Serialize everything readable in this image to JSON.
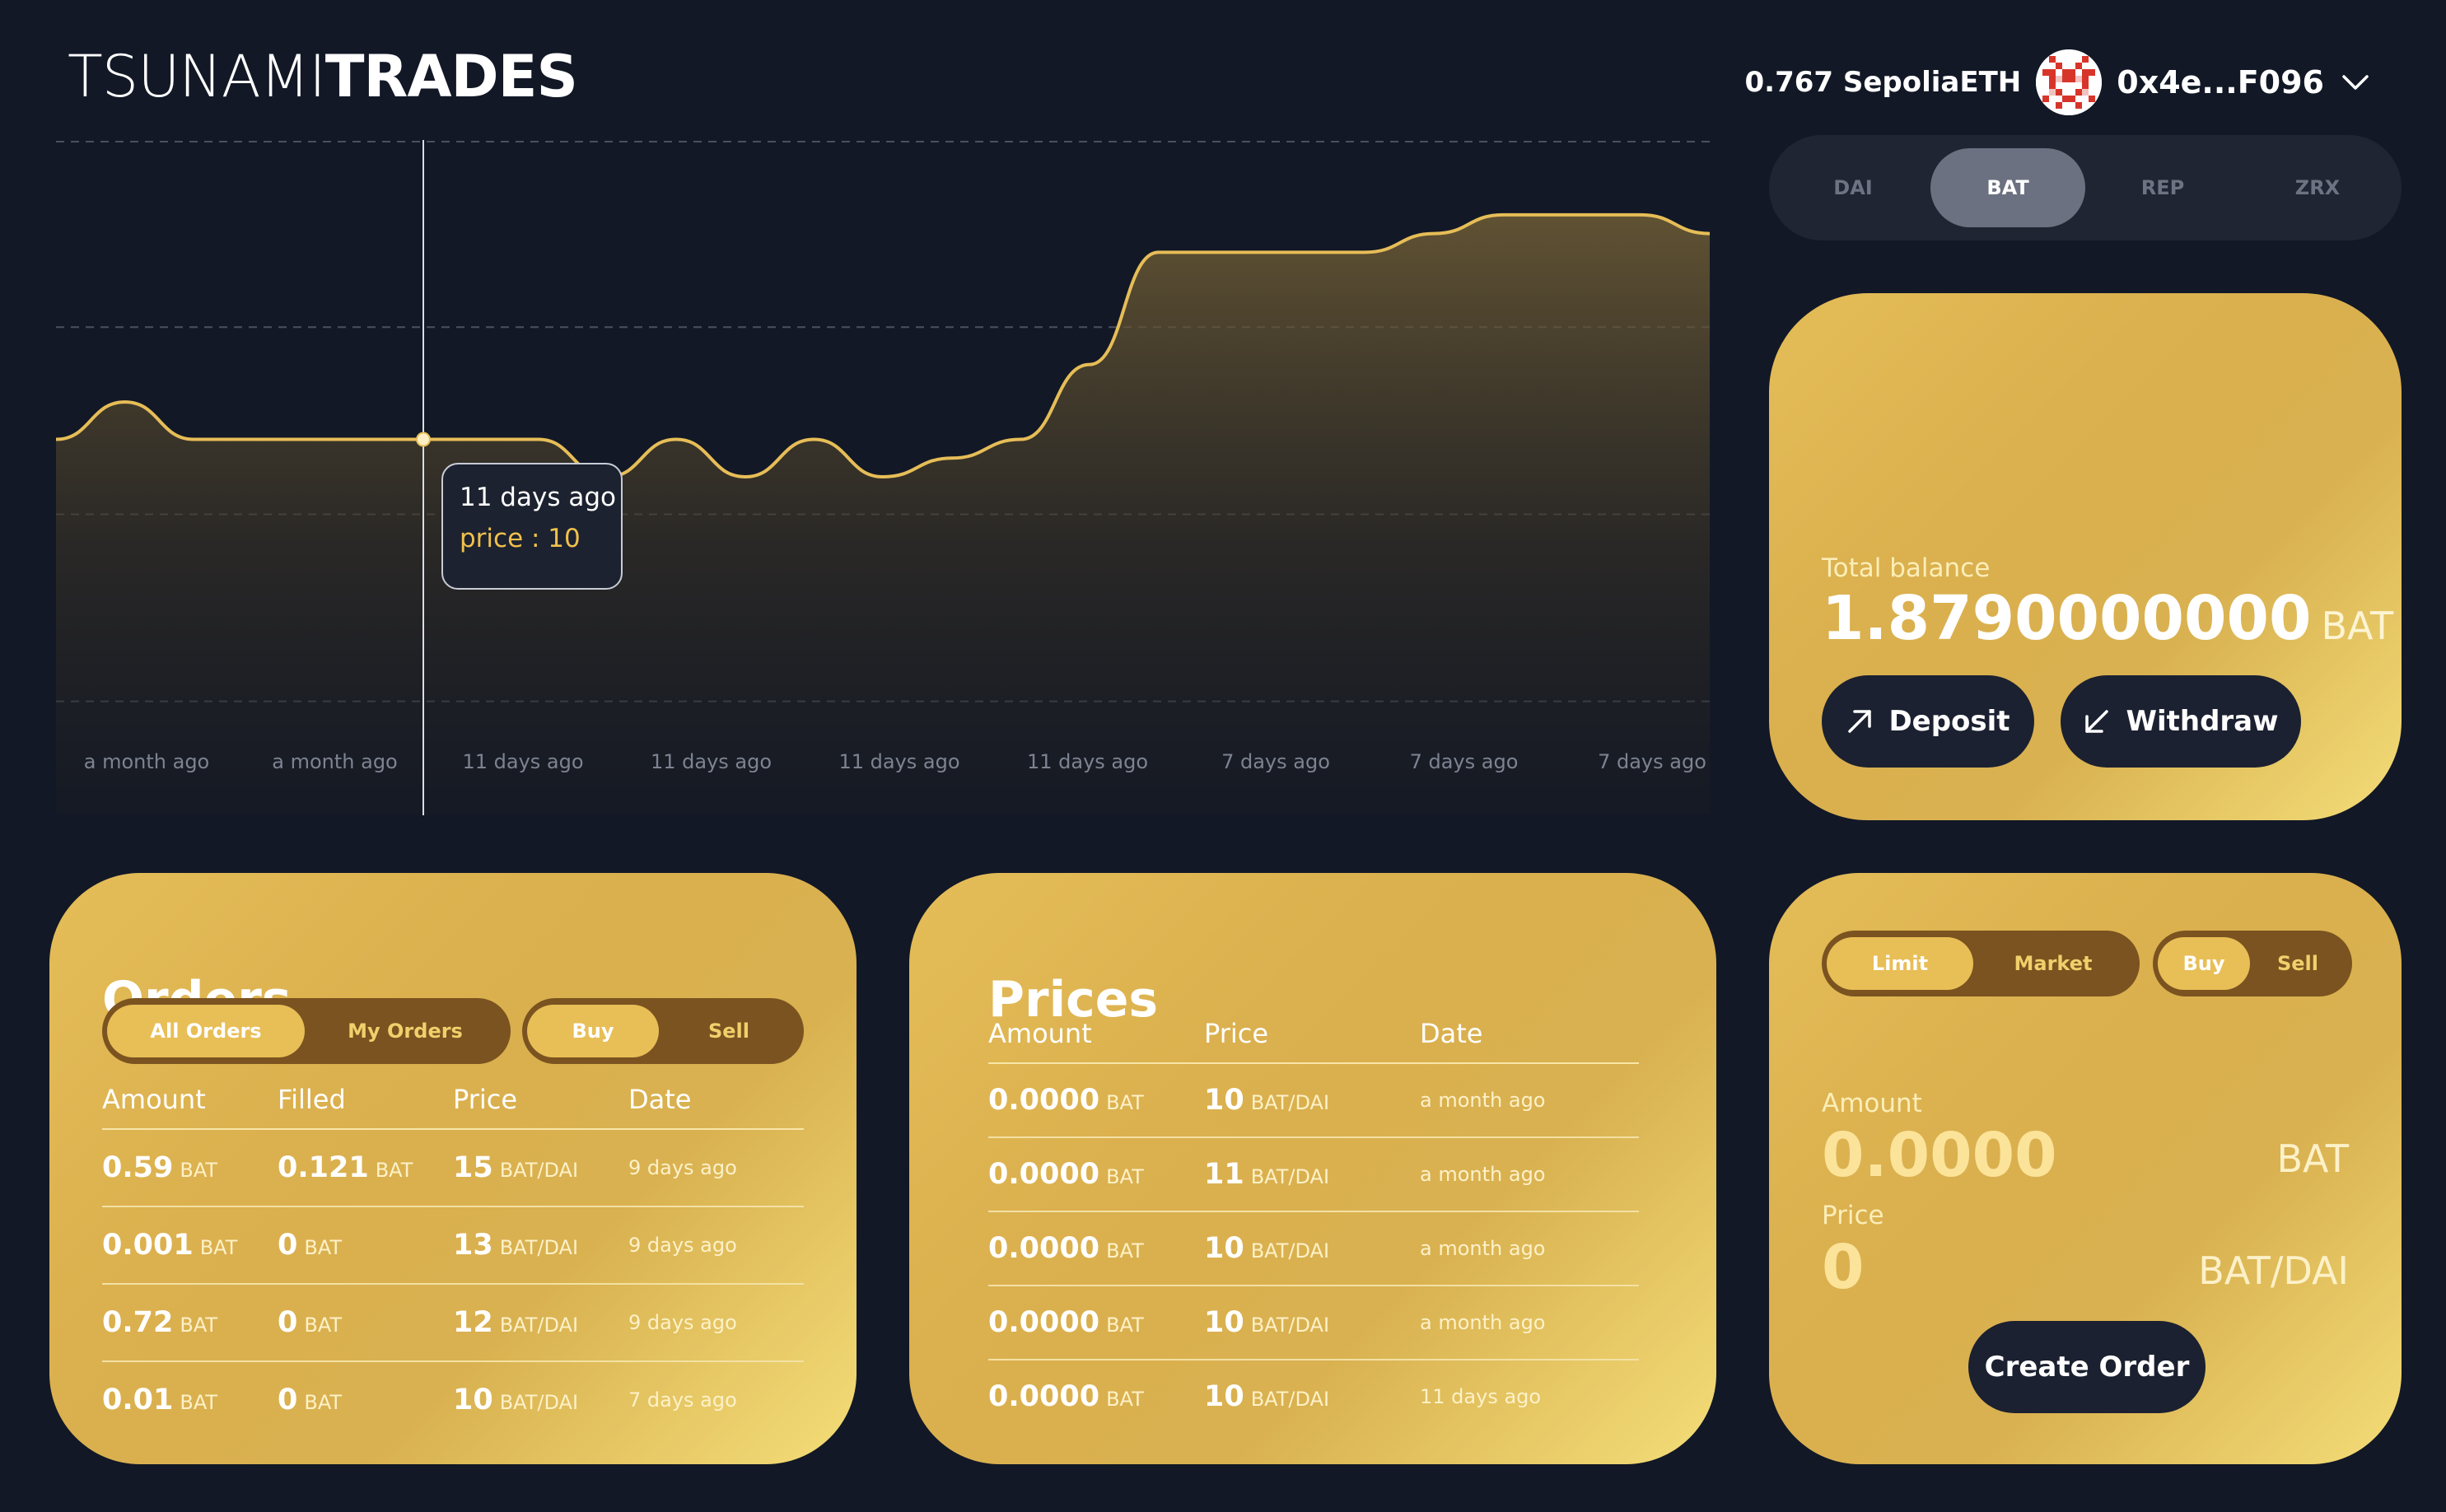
{
  "header": {
    "logo_light": "TSUNAMI",
    "logo_bold": "TRADES",
    "balance": "0.767 SepoliaETH",
    "address": "0x4e...F096"
  },
  "token_tabs": [
    {
      "label": "DAI",
      "active": false
    },
    {
      "label": "BAT",
      "active": true
    },
    {
      "label": "REP",
      "active": false
    },
    {
      "label": "ZRX",
      "active": false
    }
  ],
  "chart_data": {
    "type": "area",
    "x_tick_labels": [
      "a month ago",
      "a month ago",
      "11 days ago",
      "11 days ago",
      "11 days ago",
      "11 days ago",
      "7 days ago",
      "7 days ago",
      "7 days ago"
    ],
    "series": [
      {
        "values": [
          10,
          11,
          10,
          10,
          10,
          10,
          10,
          10,
          9,
          10,
          9,
          10,
          9,
          9.5,
          10,
          12,
          15,
          15,
          15,
          15,
          15.5,
          16,
          16,
          16,
          15.5
        ]
      }
    ],
    "ylim": [
      0,
      18
    ],
    "grid": true,
    "line_color": "#e6bd57",
    "tooltip": {
      "date": "11 days ago",
      "label": "price : 10",
      "index": 4
    }
  },
  "balance_card": {
    "label": "Total balance",
    "amount": "1.8790000000",
    "unit": "BAT",
    "deposit_label": "Deposit",
    "withdraw_label": "Withdraw"
  },
  "orders": {
    "title": "Orders",
    "filter_tabs": [
      {
        "label": "All Orders",
        "active": true
      },
      {
        "label": "My Orders",
        "active": false
      }
    ],
    "side_tabs": [
      {
        "label": "Buy",
        "active": true
      },
      {
        "label": "Sell",
        "active": false
      }
    ],
    "columns": [
      "Amount",
      "Filled",
      "Price",
      "Date"
    ],
    "rows": [
      {
        "amount": "0.59",
        "amount_unit": "BAT",
        "filled": "0.121",
        "filled_unit": "BAT",
        "price": "15",
        "price_unit": "BAT/DAI",
        "date": "9 days ago"
      },
      {
        "amount": "0.001",
        "amount_unit": "BAT",
        "filled": "0",
        "filled_unit": "BAT",
        "price": "13",
        "price_unit": "BAT/DAI",
        "date": "9 days ago"
      },
      {
        "amount": "0.72",
        "amount_unit": "BAT",
        "filled": "0",
        "filled_unit": "BAT",
        "price": "12",
        "price_unit": "BAT/DAI",
        "date": "9 days ago"
      },
      {
        "amount": "0.01",
        "amount_unit": "BAT",
        "filled": "0",
        "filled_unit": "BAT",
        "price": "10",
        "price_unit": "BAT/DAI",
        "date": "7 days ago"
      }
    ]
  },
  "prices": {
    "title": "Prices",
    "columns": [
      "Amount",
      "Price",
      "Date"
    ],
    "rows": [
      {
        "amount": "0.0000",
        "amount_unit": "BAT",
        "price": "10",
        "price_unit": "BAT/DAI",
        "date": "a month ago"
      },
      {
        "amount": "0.0000",
        "amount_unit": "BAT",
        "price": "11",
        "price_unit": "BAT/DAI",
        "date": "a month ago"
      },
      {
        "amount": "0.0000",
        "amount_unit": "BAT",
        "price": "10",
        "price_unit": "BAT/DAI",
        "date": "a month ago"
      },
      {
        "amount": "0.0000",
        "amount_unit": "BAT",
        "price": "10",
        "price_unit": "BAT/DAI",
        "date": "a month ago"
      },
      {
        "amount": "0.0000",
        "amount_unit": "BAT",
        "price": "10",
        "price_unit": "BAT/DAI",
        "date": "11 days ago"
      }
    ]
  },
  "order_form": {
    "type_tabs": [
      {
        "label": "Limit",
        "active": true
      },
      {
        "label": "Market",
        "active": false
      }
    ],
    "side_tabs": [
      {
        "label": "Buy",
        "active": true
      },
      {
        "label": "Sell",
        "active": false
      }
    ],
    "amount_label": "Amount",
    "amount_value": "0.0000",
    "amount_unit": "BAT",
    "price_label": "Price",
    "price_value": "0",
    "price_unit": "BAT/DAI",
    "submit_label": "Create Order"
  }
}
